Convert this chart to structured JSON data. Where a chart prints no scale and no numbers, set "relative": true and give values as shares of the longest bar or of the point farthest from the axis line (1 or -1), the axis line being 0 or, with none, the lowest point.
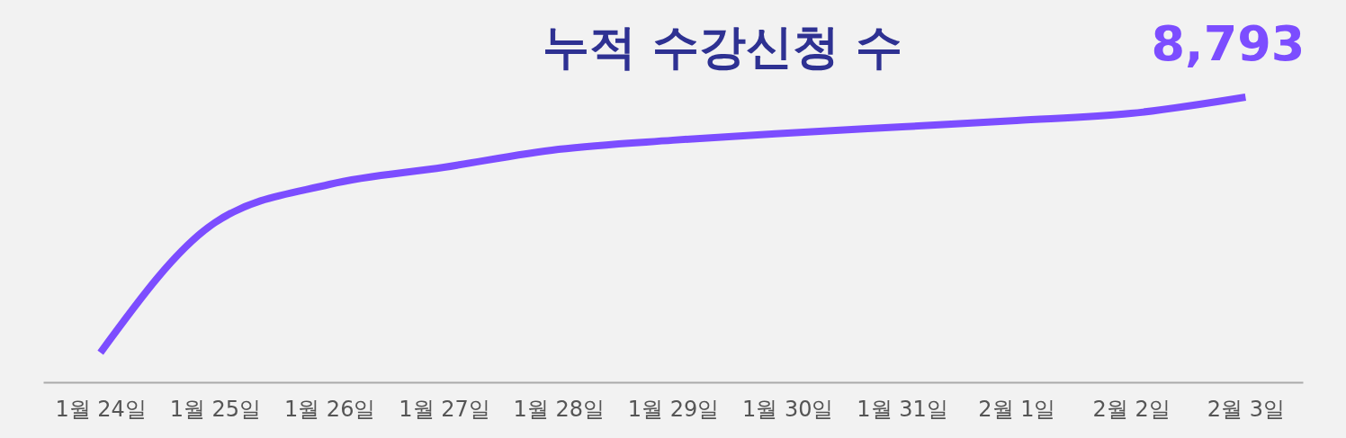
{
  "chart_data": {
    "type": "line",
    "title": "누적 수강신청 수",
    "categories": [
      "1월 24일",
      "1월 25일",
      "1월 26일",
      "1월 27일",
      "1월 28일",
      "1월 29일",
      "1월 30일",
      "1월 31일",
      "2월 1일",
      "2월 2일",
      "2월 3일"
    ],
    "series": [
      {
        "color": "#7c4dff",
        "values": [
          0.104,
          0.56,
          0.694,
          0.754,
          0.817,
          0.849,
          0.874,
          0.896,
          0.918,
          0.943,
          1
        ]
      }
    ],
    "relative": true,
    "annotations": [
      {
        "text": "8,793",
        "x": "2월 3일",
        "y": 1
      }
    ]
  }
}
